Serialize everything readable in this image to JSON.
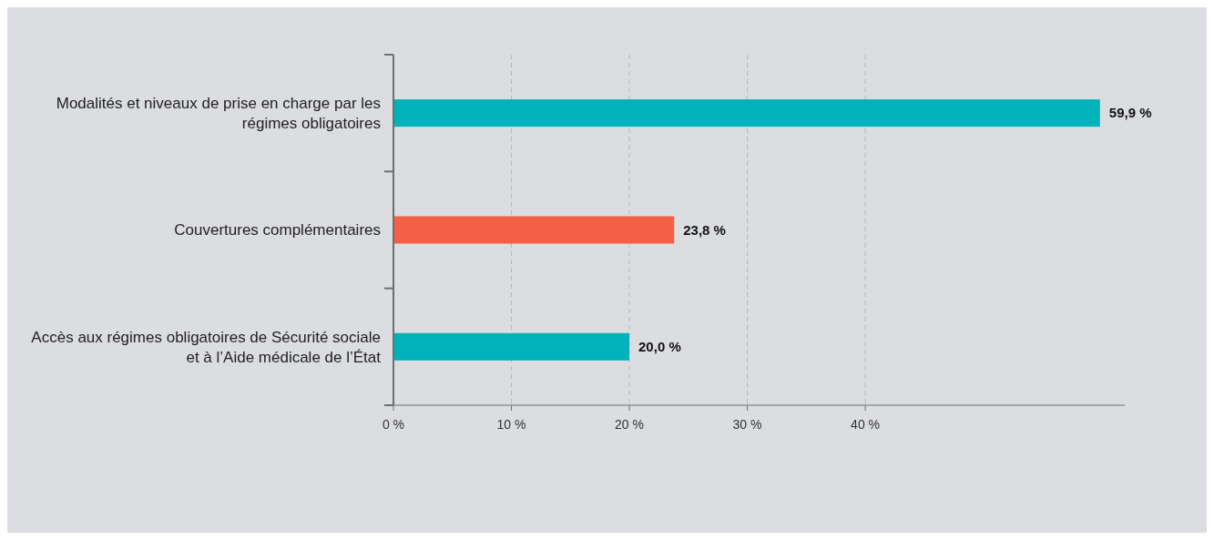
{
  "chart_data": {
    "type": "bar",
    "orientation": "horizontal",
    "categories": [
      "Modalités et niveaux de prise en charge par les régimes obligatoires",
      "Couvertures complémentaires",
      "Accès aux régimes obligatoires de Sécurité sociale et à l’Aide médicale de l’État"
    ],
    "values": [
      59.9,
      23.8,
      20.0
    ],
    "colors": [
      "#00b2b9",
      "#f45f45",
      "#00b2b9"
    ],
    "value_labels": [
      "59,9 %",
      "23,8 %",
      "20,0 %"
    ],
    "xlim": [
      0,
      62
    ],
    "xticks": [
      {
        "value": 0,
        "label": "0 %"
      },
      {
        "value": 10,
        "label": "10 %"
      },
      {
        "value": 20,
        "label": "20 %"
      },
      {
        "value": 30,
        "label": "30 %"
      },
      {
        "value": 40,
        "label": "40 %"
      }
    ],
    "grid": "x"
  }
}
